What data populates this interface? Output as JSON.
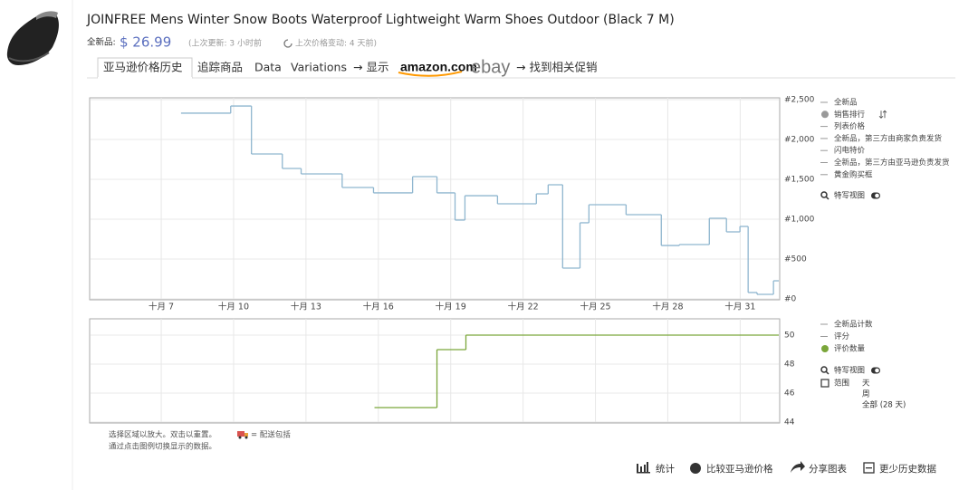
{
  "product": {
    "title": "JOINFREE Mens Winter Snow Boots Waterproof Lightweight Warm Shoes Outdoor (Black 7 M)",
    "price_label": "全新品:",
    "price": "$ 26.99",
    "update_note": "(上次更新: 3 小时前",
    "price_change_note": "上次价格变动: 4 天前)"
  },
  "tabs": [
    "亚马逊价格历史",
    "追踪商品",
    "Data",
    "Variations",
    "→ 显示",
    "amazon.com",
    "ebay",
    "→ 找到相关促销"
  ],
  "chart_data": [
    {
      "type": "line",
      "step": true,
      "legend_items": [
        "全新品",
        "列表价格",
        "全新品，第三方由商家负责发货",
        "闪电特价",
        "全新品，第三方由亚马逊负责发货",
        "黄金购买框"
      ],
      "closeup": "特写视图",
      "series": [
        {
          "name": "销售排行",
          "color": "#8fb6cf",
          "x": [
            7.82,
            9.88,
            10.74,
            12.02,
            12.8,
            14.5,
            15.8,
            17.42,
            18.43,
            19.18,
            19.59,
            20.94,
            22.55,
            23.04,
            23.64,
            24.36,
            24.73,
            26.27,
            27.73,
            28.48,
            29.72,
            30.43,
            30.99,
            31.33,
            31.7,
            32.38
          ],
          "values": [
            2330,
            2420,
            1818,
            1636,
            1568,
            1398,
            1330,
            1534,
            1330,
            989,
            1295,
            1193,
            1318,
            1432,
            386,
            955,
            1182,
            1057,
            670,
            682,
            1011,
            841,
            909,
            80,
            57,
            227
          ]
        }
      ],
      "xlim": [
        4.07,
        32.6
      ],
      "xticks": [
        {
          "value": 7,
          "label": "十月 7"
        },
        {
          "value": 10,
          "label": "十月 10"
        },
        {
          "value": 13,
          "label": "十月 13"
        },
        {
          "value": 16,
          "label": "十月 16"
        },
        {
          "value": 19,
          "label": "十月 19"
        },
        {
          "value": 22,
          "label": "十月 22"
        },
        {
          "value": 25,
          "label": "十月 25"
        },
        {
          "value": 28,
          "label": "十月 28"
        },
        {
          "value": 31,
          "label": "十月 31"
        }
      ],
      "ylim": [
        0,
        2500
      ],
      "yticks": [
        {
          "value": 0,
          "label": "#0"
        },
        {
          "value": 500,
          "label": "#500"
        },
        {
          "value": 1000,
          "label": "#1,000"
        },
        {
          "value": 1500,
          "label": "#1,500"
        },
        {
          "value": 2000,
          "label": "#2,000"
        },
        {
          "value": 2500,
          "label": "#2,500"
        }
      ],
      "grid": true
    },
    {
      "type": "line",
      "step": true,
      "legend_items": [
        "全新品计数",
        "评分"
      ],
      "closeup": "特写视图",
      "range_label": "范围",
      "range_options": [
        "天",
        "周",
        "全部 (28 天)"
      ],
      "series": [
        {
          "name": "评价数量",
          "color": "#7aa63a",
          "x": [
            15.84,
            18.43,
            19.63
          ],
          "values": [
            45,
            49,
            50
          ]
        }
      ],
      "xlim": [
        4.07,
        32.6
      ],
      "ylim": [
        44,
        51
      ],
      "yticks": [
        44,
        46,
        48,
        50
      ],
      "grid": true
    }
  ],
  "notes": [
    "选择区域以放大。双击以重置。",
    "= 配送包括",
    "通过点击图例切换显示的数据。"
  ],
  "toolbar": [
    "统计",
    "比较亚马逊价格",
    "分享图表",
    "更少历史数据"
  ]
}
